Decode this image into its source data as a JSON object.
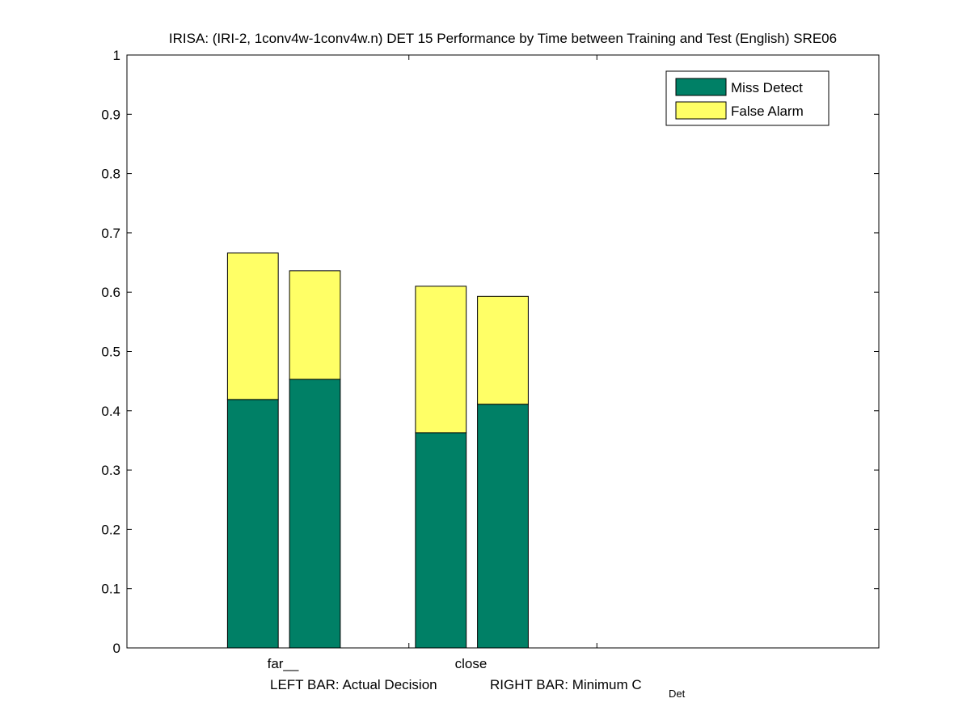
{
  "chart_data": {
    "type": "bar",
    "stacked": true,
    "title": "IRISA: (IRI-2, 1conv4w-1conv4w.n) DET 15 Performance by Time between Training and Test (English) SRE06",
    "xlabel": {
      "left_text": "LEFT BAR: Actual Decision",
      "right_text": "RIGHT BAR: Minimum C",
      "subscript": "Det"
    },
    "ylabel": "",
    "ylim": [
      0,
      1
    ],
    "yticks": [
      "0",
      "0.1",
      "0.2",
      "0.3",
      "0.4",
      "0.5",
      "0.6",
      "0.7",
      "0.8",
      "0.9",
      "1"
    ],
    "categories": [
      "far__",
      "close"
    ],
    "bars_per_category": [
      "Actual Decision",
      "Minimum C_Det"
    ],
    "series": [
      {
        "name": "Miss Detect",
        "color": "#008066",
        "values": [
          [
            0.419,
            0.453
          ],
          [
            0.363,
            0.411
          ]
        ]
      },
      {
        "name": "False Alarm",
        "color": "#ffff66",
        "values": [
          [
            0.247,
            0.183
          ],
          [
            0.247,
            0.182
          ]
        ]
      }
    ],
    "totals": [
      [
        0.666,
        0.636
      ],
      [
        0.61,
        0.593
      ]
    ],
    "legend_position": "top-right",
    "grid": false
  }
}
